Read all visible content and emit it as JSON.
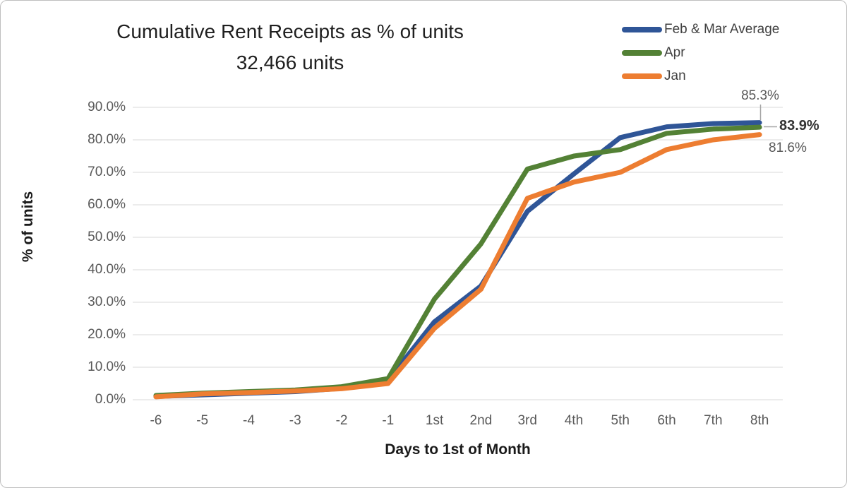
{
  "title": {
    "line1": "Cumulative Rent Receipts as % of units",
    "line2": "32,466 units"
  },
  "chart_data": {
    "type": "line",
    "title": "Cumulative Rent Receipts as % of units 32,466 units",
    "xlabel": "Days to 1st of Month",
    "ylabel": "% of units",
    "categories": [
      "-6",
      "-5",
      "-4",
      "-3",
      "-2",
      "-1",
      "1st",
      "2nd",
      "3rd",
      "4th",
      "5th",
      "6th",
      "7th",
      "8th"
    ],
    "series": [
      {
        "name": "Feb & Mar Average",
        "color": "#2F5597",
        "values": [
          1.0,
          1.5,
          2.0,
          2.5,
          3.5,
          6.0,
          24.0,
          35.0,
          58.0,
          69.5,
          80.7,
          84.0,
          85.0,
          85.3
        ],
        "end_label": "85.3%"
      },
      {
        "name": "Apr",
        "color": "#538135",
        "values": [
          1.3,
          2.0,
          2.5,
          3.0,
          4.0,
          6.5,
          31.0,
          48.0,
          71.0,
          75.0,
          77.0,
          82.0,
          83.3,
          83.9
        ],
        "end_label": "83.9%"
      },
      {
        "name": "Jan",
        "color": "#ED7D31",
        "values": [
          0.9,
          1.8,
          2.2,
          2.7,
          3.4,
          5.0,
          22.0,
          34.0,
          62.0,
          67.0,
          70.0,
          77.0,
          80.0,
          81.6
        ],
        "end_label": "81.6%"
      }
    ],
    "ylim": [
      0,
      90
    ],
    "ytick_values": [
      0,
      10,
      20,
      30,
      40,
      50,
      60,
      70,
      80,
      90
    ],
    "ytick_labels": [
      "0.0%",
      "10.0%",
      "20.0%",
      "30.0%",
      "40.0%",
      "50.0%",
      "60.0%",
      "70.0%",
      "80.0%",
      "90.0%"
    ],
    "grid": "horizontal",
    "legend_position": "top-right"
  },
  "colors": {
    "gridline": "#D9D9D9",
    "axis_text": "#595959",
    "title_text": "#1F1F1F",
    "frame_border": "#BFBFBF",
    "leader_line": "#A6A6A6"
  }
}
